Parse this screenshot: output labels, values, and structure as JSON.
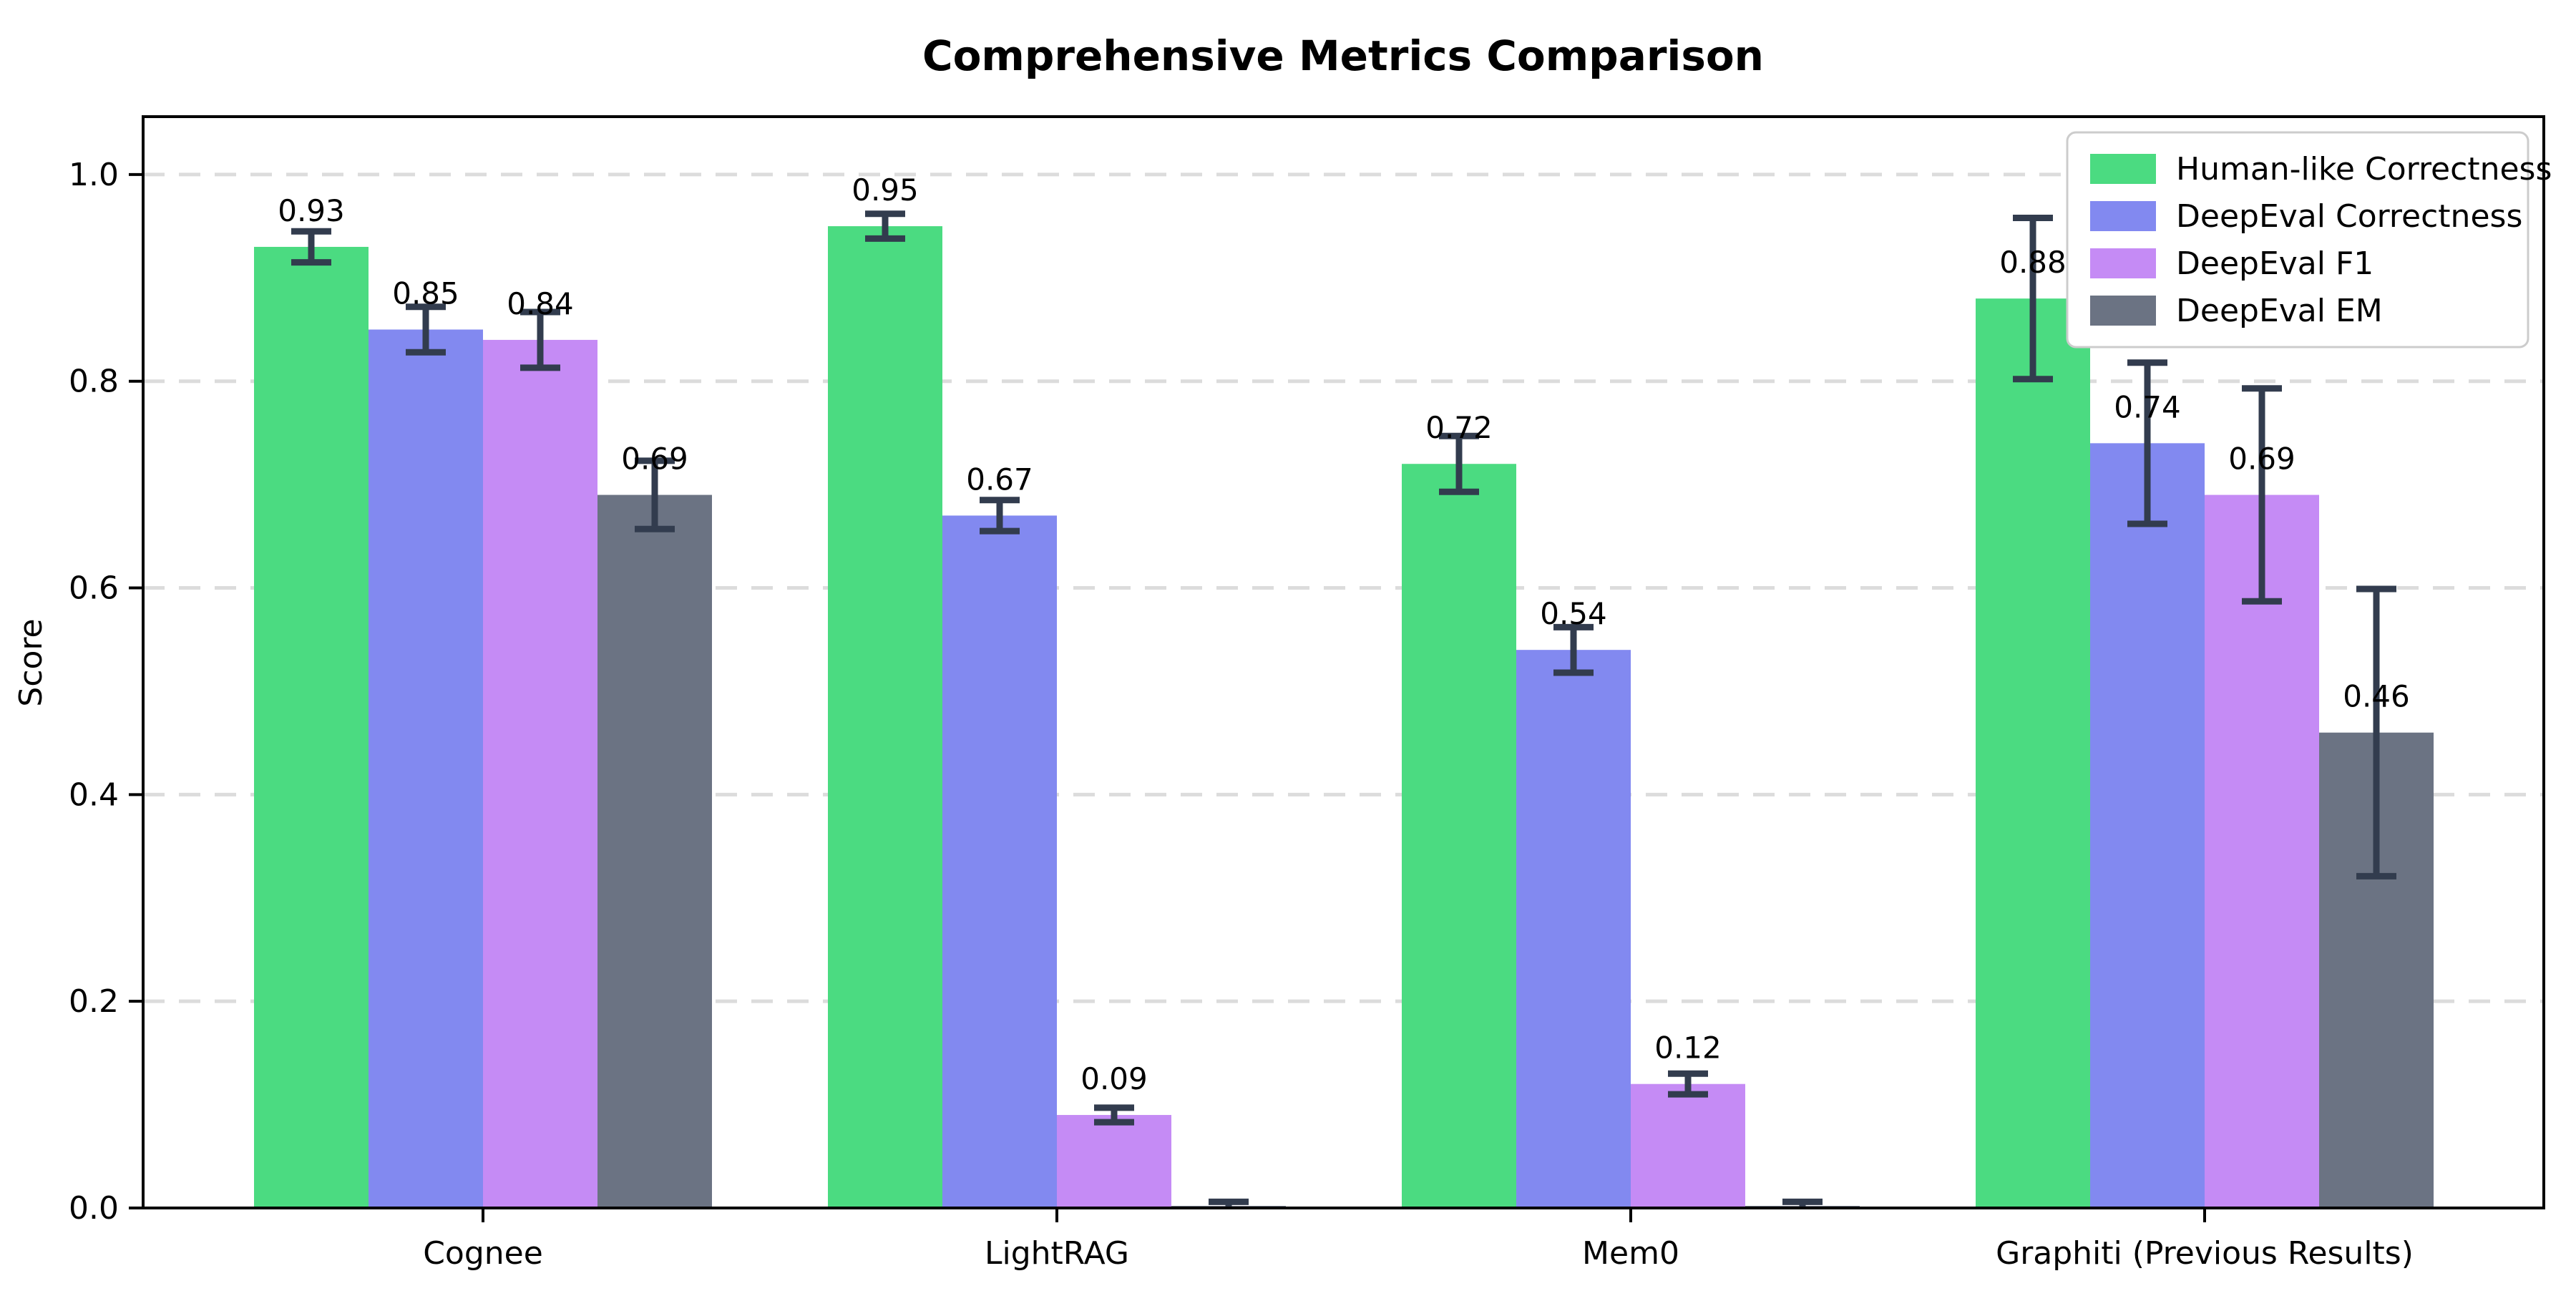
{
  "chart_data": {
    "type": "bar",
    "title": "Comprehensive Metrics Comparison",
    "xlabel": "",
    "ylabel": "Score",
    "categories": [
      "Cognee",
      "LightRAG",
      "Mem0",
      "Graphiti (Previous Results)"
    ],
    "series": [
      {
        "name": "Human-like Correctness",
        "color": "#4bdb81",
        "values": [
          0.93,
          0.95,
          0.72,
          0.88
        ],
        "errors": [
          0.015,
          0.012,
          0.027,
          0.078
        ],
        "labels": [
          "0.93",
          "0.95",
          "0.72",
          "0.88"
        ]
      },
      {
        "name": "DeepEval Correctness",
        "color": "#8289f0",
        "values": [
          0.85,
          0.67,
          0.54,
          0.74
        ],
        "errors": [
          0.022,
          0.015,
          0.022,
          0.078
        ],
        "labels": [
          "0.85",
          "0.67",
          "0.54",
          "0.74"
        ]
      },
      {
        "name": "DeepEval F1",
        "color": "#c58bf5",
        "values": [
          0.84,
          0.09,
          0.12,
          0.69
        ],
        "errors": [
          0.027,
          0.007,
          0.01,
          0.103
        ],
        "labels": [
          "0.84",
          "0.09",
          "0.12",
          "0.69"
        ]
      },
      {
        "name": "DeepEval EM",
        "color": "#6b7383",
        "values": [
          0.69,
          0.002,
          0.002,
          0.46
        ],
        "errors": [
          0.033,
          0.004,
          0.004,
          0.139
        ],
        "labels": [
          "0.69",
          "",
          "",
          "0.46"
        ]
      }
    ],
    "ylim": [
      0,
      1.056
    ],
    "yticks": [
      0.0,
      0.2,
      0.4,
      0.6,
      0.8,
      1.0
    ],
    "ytick_labels": [
      "0.0",
      "0.2",
      "0.4",
      "0.6",
      "0.8",
      "1.0"
    ],
    "grid": true,
    "grid_style": "dashed",
    "grid_color": "#dcdcdc",
    "error_bar_color": "#323c4e",
    "axis_color": "#000000",
    "legend": {
      "position": "upper-right",
      "entries": [
        "Human-like Correctness",
        "DeepEval Correctness",
        "DeepEval F1",
        "DeepEval EM"
      ],
      "background": "#ffffff",
      "border_color": "#cccccc"
    }
  }
}
